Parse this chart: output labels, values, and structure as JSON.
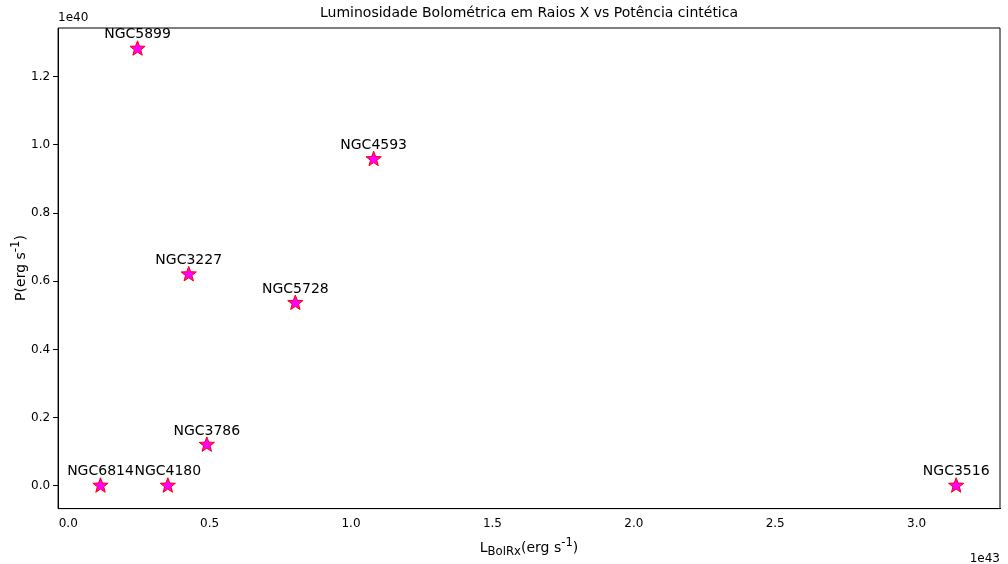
{
  "chart_data": {
    "type": "scatter",
    "title": "Luminosidade Bolométrica em Raios X vs Potência cintética",
    "xlabel": "L$_{Bol}$$_{Rx}$(erg s$^{-1}$)",
    "ylabel": "P(erg s$^{-1}$)",
    "series": [
      {
        "color": "#ff00ff",
        "x": [
          0.245,
          1.08,
          0.426,
          0.803,
          0.49,
          0.114,
          0.352,
          3.14
        ],
        "values": [
          1.282,
          0.958,
          0.62,
          0.536,
          0.12,
          0,
          0,
          0
        ]
      }
    ],
    "marker": "star",
    "grid": false,
    "legend": false,
    "xlim": [
      -0.036,
      3.295
    ],
    "ylim": [
      -0.067,
      1.343
    ],
    "xticks": [
      {
        "value": 0,
        "label": "0.0"
      },
      {
        "value": 0.5,
        "label": "0.5"
      },
      {
        "value": 1,
        "label": "1.0"
      },
      {
        "value": 1.5,
        "label": "1.5"
      },
      {
        "value": 2,
        "label": "2.0"
      },
      {
        "value": 2.5,
        "label": "2.5"
      },
      {
        "value": 3,
        "label": "3.0"
      }
    ],
    "yticks": [
      {
        "value": 0,
        "label": "0.0"
      },
      {
        "value": 0.2,
        "label": "0.2"
      },
      {
        "value": 0.4,
        "label": "0.4"
      },
      {
        "value": 0.6,
        "label": "0.6"
      },
      {
        "value": 0.8,
        "label": "0.8"
      },
      {
        "value": 1,
        "label": "1.0"
      },
      {
        "value": 1.2,
        "label": "1.2"
      }
    ],
    "annotations": [
      "1e40",
      "1e43",
      {
        "text": "NGC5899",
        "x": 0.245,
        "y": 1.282
      },
      {
        "text": "NGC4593",
        "x": 1.08,
        "y": 0.958
      },
      {
        "text": "NGC3227",
        "x": 0.426,
        "y": 0.62
      },
      {
        "text": "NGC5728",
        "x": 0.803,
        "y": 0.536
      },
      {
        "text": "NGC3786",
        "x": 0.49,
        "y": 0.12
      },
      {
        "text": "NGC6814",
        "x": 0.114,
        "y": 0
      },
      {
        "text": "NGC4180",
        "x": 0.352,
        "y": 0
      },
      {
        "text": "NGC3516",
        "x": 3.14,
        "y": 0
      }
    ]
  }
}
